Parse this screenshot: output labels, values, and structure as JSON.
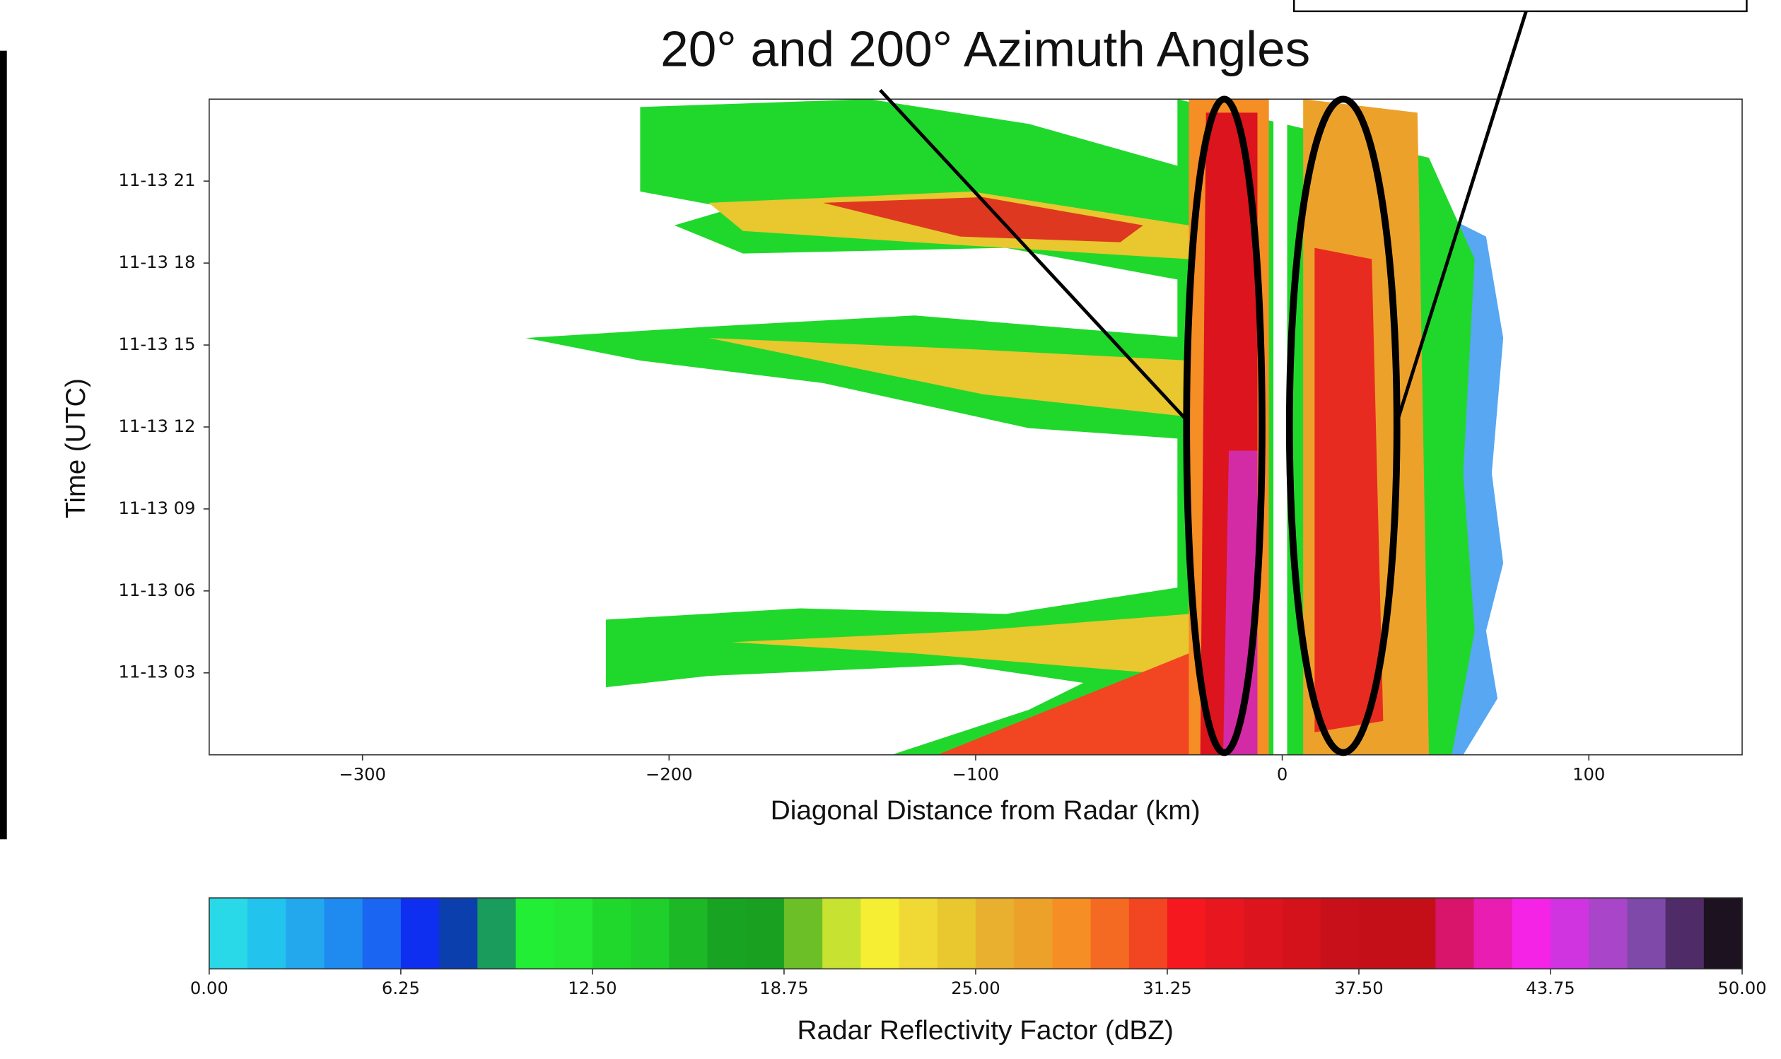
{
  "chart_data": {
    "type": "heatmap",
    "annotations": [
      "20° and 200° Azimuth Angles"
    ],
    "x_label": "Diagonal Distance from Radar (km)",
    "y_label": "Time (UTC)",
    "xlim": [
      -350,
      150
    ],
    "xticks": [
      {
        "value": -300,
        "label": "−300"
      },
      {
        "value": -200,
        "label": "−200"
      },
      {
        "value": -100,
        "label": "−100"
      },
      0,
      100
    ],
    "ylim": [
      0,
      24
    ],
    "yticks": [
      {
        "value": 3,
        "label": "11-13 03"
      },
      {
        "value": 6,
        "label": "11-13 06"
      },
      {
        "value": 9,
        "label": "11-13 09"
      },
      {
        "value": 12,
        "label": "11-13 12"
      },
      {
        "value": 15,
        "label": "11-13 15"
      },
      {
        "value": 18,
        "label": "11-13 18"
      },
      {
        "value": 21,
        "label": "11-13 21"
      }
    ],
    "colorbar": {
      "label": "Radar Reflectivity Factor (dBZ)",
      "lim": [
        0,
        50
      ],
      "ticks": [
        {
          "value": 0,
          "label": "0.00"
        },
        {
          "value": 6.25,
          "label": "6.25"
        },
        {
          "value": 12.5,
          "label": "12.50"
        },
        {
          "value": 18.75,
          "label": "18.75"
        },
        {
          "value": 25,
          "label": "25.00"
        },
        {
          "value": 31.25,
          "label": "31.25"
        },
        {
          "value": 37.5,
          "label": "37.50"
        },
        {
          "value": 43.75,
          "label": "43.75"
        },
        {
          "value": 50,
          "label": "50.00"
        }
      ],
      "colors": [
        "#29d9e8",
        "#22c3ec",
        "#23a8ee",
        "#1f8aef",
        "#1a66f2",
        "#0f2ff0",
        "#0c3fae",
        "#1a9c5c",
        "#22ee35",
        "#25e835",
        "#20d82c",
        "#1fcf2b",
        "#1cb826",
        "#18a322",
        "#19a021",
        "#6cbf26",
        "#c7e231",
        "#f6ee32",
        "#f0d935",
        "#e8c72f",
        "#e8b02e",
        "#eca22a",
        "#f58e24",
        "#f56a22",
        "#f24522",
        "#f5191f",
        "#e8161f",
        "#dc141d",
        "#d4121b",
        "#c8101a",
        "#c40f19",
        "#c40f19",
        "#d9146b",
        "#ea1db2",
        "#f523e6",
        "#cf34e0",
        "#a845c8",
        "#7e49a8",
        "#4f2c68",
        "#1d1220"
      ]
    }
  }
}
